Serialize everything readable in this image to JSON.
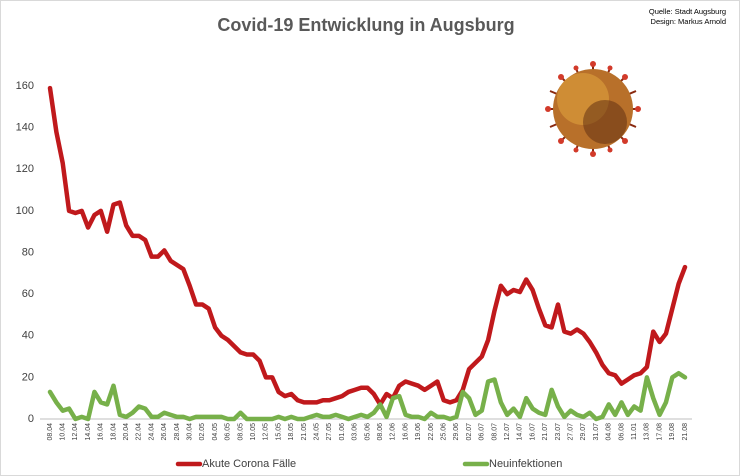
{
  "chart_data": {
    "type": "line",
    "title": "Covid-19 Entwicklung in Augsburg",
    "annotations": [
      "Quelle: Stadt Augsburg",
      "Design: Markus Arnold"
    ],
    "categories": [
      "08.04",
      null,
      "10.04",
      null,
      "12.04",
      null,
      "14.04",
      null,
      "16.04",
      null,
      "18.04",
      null,
      "20.04",
      null,
      "22.04",
      null,
      "24.04",
      null,
      "26.04",
      null,
      "28.04",
      null,
      "30.04",
      null,
      "02.05",
      null,
      "04.05",
      null,
      "06.05",
      null,
      "08.05",
      null,
      "10.05",
      null,
      "12.05",
      null,
      "15.05",
      null,
      "18.05",
      null,
      "21.05",
      null,
      "24.05",
      null,
      "27.05",
      null,
      "01.06",
      null,
      "03.06",
      null,
      "05.06",
      null,
      "08.06",
      null,
      "12.06",
      null,
      "16.06",
      null,
      "19.06",
      null,
      "22.06",
      null,
      "25.06",
      null,
      "29.06",
      null,
      "02.07",
      null,
      "06.07",
      null,
      "08.07",
      null,
      "12.07",
      null,
      "14.07",
      null,
      "16.07",
      null,
      "21.07",
      null,
      "23.07",
      null,
      "27.07",
      null,
      "29.07",
      null,
      "31.07",
      null,
      "04.08",
      null,
      "06.08",
      null,
      "11.01",
      null,
      "13.08",
      null,
      "17.08",
      null,
      "19.08",
      null,
      "21.08"
    ],
    "series": [
      {
        "name": "Akute Corona Fälle",
        "color": "#c0191c",
        "values": [
          159,
          138,
          123,
          100,
          99,
          100,
          92,
          98,
          100,
          90,
          103,
          104,
          93,
          88,
          88,
          86,
          78,
          78,
          81,
          76,
          74,
          72,
          64,
          55,
          55,
          53,
          44,
          40,
          38,
          35,
          32,
          31,
          31,
          28,
          20,
          20,
          13,
          11,
          12,
          9,
          8,
          8,
          8,
          9,
          9,
          10,
          11,
          13,
          14,
          15,
          15,
          12,
          7,
          12,
          10,
          16,
          18,
          17,
          16,
          14,
          16,
          18,
          9,
          8,
          9,
          14,
          24,
          27,
          30,
          38,
          52,
          64,
          60,
          62,
          61,
          67,
          62,
          53,
          45,
          44,
          55,
          42,
          41,
          43,
          41,
          37,
          32,
          26,
          22,
          21,
          17,
          19,
          21,
          22,
          25,
          42,
          37,
          41,
          53,
          65,
          73
        ]
      },
      {
        "name": "Neuinfektionen",
        "color": "#77b04a",
        "values": [
          13,
          8,
          4,
          5,
          0,
          1,
          0,
          13,
          8,
          7,
          16,
          2,
          1,
          3,
          6,
          5,
          1,
          1,
          3,
          2,
          1,
          1,
          0,
          1,
          1,
          1,
          1,
          1,
          0,
          0,
          3,
          0,
          0,
          0,
          0,
          0,
          1,
          0,
          1,
          0,
          0,
          1,
          2,
          1,
          1,
          2,
          1,
          0,
          1,
          2,
          1,
          3,
          7,
          1,
          10,
          11,
          2,
          1,
          1,
          0,
          3,
          1,
          1,
          0,
          1,
          13,
          10,
          2,
          4,
          18,
          19,
          8,
          2,
          5,
          1,
          10,
          5,
          3,
          2,
          14,
          6,
          1,
          4,
          2,
          1,
          3,
          0,
          1,
          7,
          2,
          8,
          2,
          6,
          4,
          20,
          10,
          2,
          8,
          20,
          22,
          20
        ]
      }
    ],
    "ylim": [
      0,
      160
    ],
    "yticks": [
      0,
      20,
      40,
      60,
      80,
      100,
      120,
      140,
      160
    ],
    "grid": false,
    "legend": "bottom"
  }
}
